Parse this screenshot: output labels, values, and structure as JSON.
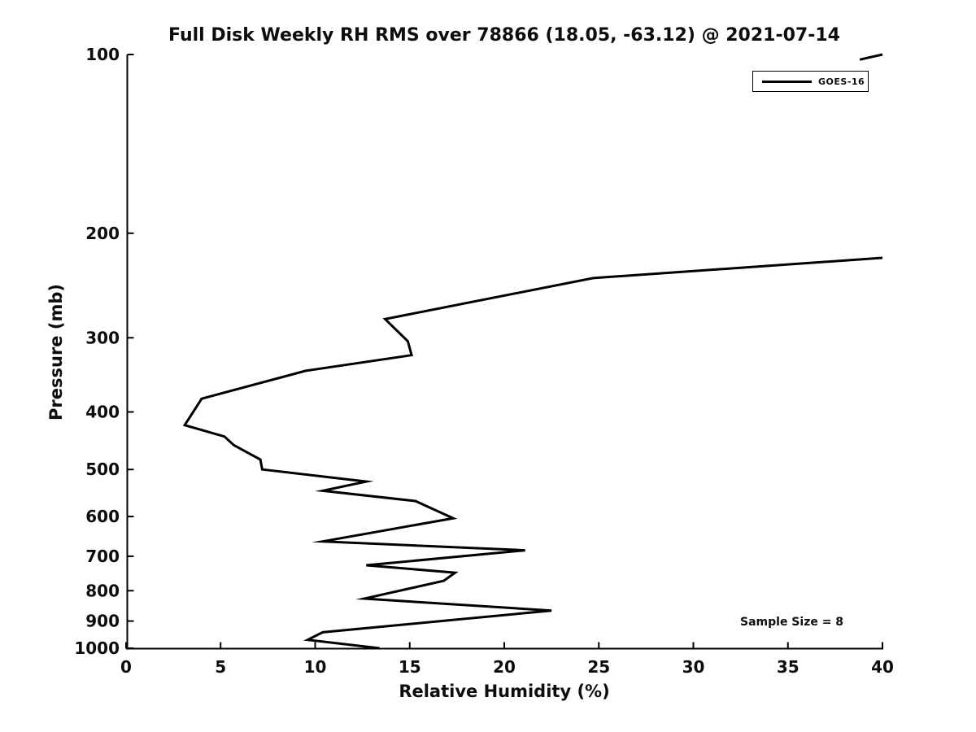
{
  "chart_data": {
    "type": "line",
    "title": "Full Disk Weekly RH RMS over 78866 (18.05, -63.12) @ 2021-07-14",
    "xlabel": "Relative Humidity (%)",
    "ylabel": "Pressure (mb)",
    "xlim": [
      0,
      40
    ],
    "ylim": [
      100,
      1000
    ],
    "y_scale": "log",
    "y_inverted": true,
    "x_ticks": [
      0,
      5,
      10,
      15,
      20,
      25,
      30,
      35,
      40
    ],
    "y_ticks": [
      100,
      200,
      300,
      400,
      500,
      600,
      700,
      800,
      900,
      1000
    ],
    "grid": false,
    "legend": {
      "position": "top-right",
      "entries": [
        {
          "label": "GOES-16",
          "color": "#000000"
        }
      ]
    },
    "annotations": [
      {
        "text": "Sample Size = 8"
      }
    ],
    "series": [
      {
        "name": "GOES-16",
        "color": "#000000",
        "line_width": 3,
        "segments": [
          [
            [
              40.0,
              100
            ],
            [
              38.8,
              102
            ]
          ],
          [
            [
              40.0,
              220
            ],
            [
              24.7,
              238
            ],
            [
              13.7,
              279
            ],
            [
              14.9,
              304
            ],
            [
              15.1,
              321
            ],
            [
              9.5,
              341
            ],
            [
              4.0,
              380
            ],
            [
              3.1,
              421
            ],
            [
              5.2,
              440
            ],
            [
              5.7,
              455
            ],
            [
              7.1,
              481
            ],
            [
              7.2,
              500
            ],
            [
              12.7,
              524
            ],
            [
              10.4,
              543
            ],
            [
              15.3,
              565
            ],
            [
              17.3,
              604
            ],
            [
              10.4,
              661
            ],
            [
              21.1,
              684
            ],
            [
              12.7,
              725
            ],
            [
              17.4,
              746
            ],
            [
              16.8,
              770
            ],
            [
              12.6,
              825
            ],
            [
              22.5,
              864
            ],
            [
              10.4,
              940
            ],
            [
              9.6,
              968
            ],
            [
              13.4,
              1000
            ]
          ]
        ]
      }
    ]
  }
}
